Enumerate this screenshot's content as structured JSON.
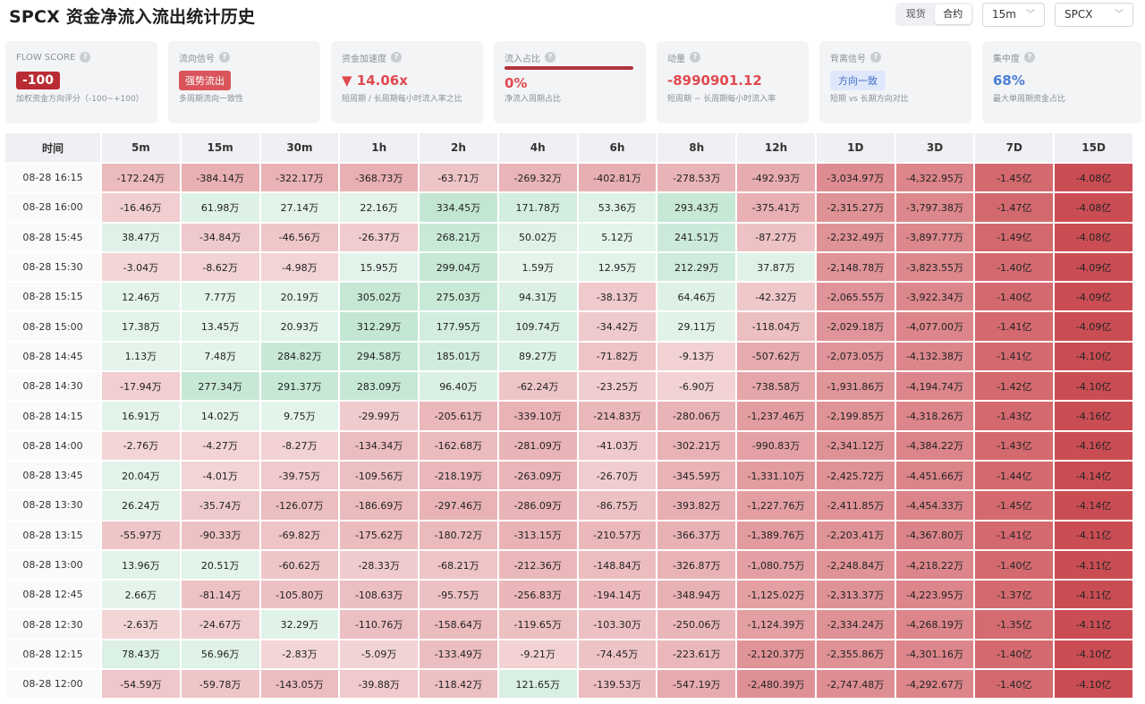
{
  "header": {
    "title": "SPCX 资金净流入流出统计历史",
    "market_tabs": [
      "现货",
      "合约"
    ],
    "active_market_tab": "合约",
    "interval_select": "15m",
    "symbol_select": "SPCX"
  },
  "metrics": {
    "flow_score": {
      "label": "FLOW SCORE",
      "value": "-100",
      "sub": "加权资金方向评分（-100~+100）"
    },
    "flow_signal": {
      "label": "流向信号",
      "value": "强势流出",
      "sub": "多周期流向一致性"
    },
    "acceleration": {
      "label": "资金加速度",
      "value": "▼ 14.06x",
      "sub": "短周期 / 长周期每小时流入率之比"
    },
    "inflow_ratio": {
      "label": "流入占比",
      "value": "0%",
      "sub": "净流入周期占比"
    },
    "momentum": {
      "label": "动量",
      "value": "-8990901.12",
      "sub": "短周期 − 长周期每小时流入率"
    },
    "divergence": {
      "label": "背离信号",
      "value": "方向一致",
      "sub": "短期 vs 长期方向对比"
    },
    "concentration": {
      "label": "集中度",
      "value": "68%",
      "sub": "最大单周期资金占比"
    }
  },
  "colors": {
    "inflow": "#2f9e5a",
    "outflow": "#c0343c",
    "brand_red": "#b92c34",
    "accent_blue": "#4a7fd6"
  },
  "table": {
    "columns": [
      "时间",
      "5m",
      "15m",
      "30m",
      "1h",
      "2h",
      "4h",
      "6h",
      "8h",
      "12h",
      "1D",
      "3D",
      "7D",
      "15D"
    ],
    "rows": [
      {
        "time": "08-28 16:15",
        "cells": [
          "-172.24万",
          "-384.14万",
          "-322.17万",
          "-368.73万",
          "-63.71万",
          "-269.32万",
          "-402.81万",
          "-278.53万",
          "-492.93万",
          "-3,034.97万",
          "-4,322.95万",
          "-1.45亿",
          "-4.08亿"
        ]
      },
      {
        "time": "08-28 16:00",
        "cells": [
          "-16.46万",
          "61.98万",
          "27.14万",
          "22.16万",
          "334.45万",
          "171.78万",
          "53.36万",
          "293.43万",
          "-375.41万",
          "-2,315.27万",
          "-3,797.38万",
          "-1.47亿",
          "-4.08亿"
        ]
      },
      {
        "time": "08-28 15:45",
        "cells": [
          "38.47万",
          "-34.84万",
          "-46.56万",
          "-26.37万",
          "268.21万",
          "50.02万",
          "5.12万",
          "241.51万",
          "-87.27万",
          "-2,232.49万",
          "-3,897.77万",
          "-1.49亿",
          "-4.08亿"
        ]
      },
      {
        "time": "08-28 15:30",
        "cells": [
          "-3.04万",
          "-8.62万",
          "-4.98万",
          "15.95万",
          "299.04万",
          "1.59万",
          "12.95万",
          "212.29万",
          "37.87万",
          "-2,148.78万",
          "-3,823.55万",
          "-1.40亿",
          "-4.09亿"
        ]
      },
      {
        "time": "08-28 15:15",
        "cells": [
          "12.46万",
          "7.77万",
          "20.19万",
          "305.02万",
          "275.03万",
          "94.31万",
          "-38.13万",
          "64.46万",
          "-42.32万",
          "-2,065.55万",
          "-3,922.34万",
          "-1.40亿",
          "-4.09亿"
        ]
      },
      {
        "time": "08-28 15:00",
        "cells": [
          "17.38万",
          "13.45万",
          "20.93万",
          "312.29万",
          "177.95万",
          "109.74万",
          "-34.42万",
          "29.11万",
          "-118.04万",
          "-2,029.18万",
          "-4,077.00万",
          "-1.41亿",
          "-4.09亿"
        ]
      },
      {
        "time": "08-28 14:45",
        "cells": [
          "1.13万",
          "7.48万",
          "284.82万",
          "294.58万",
          "185.01万",
          "89.27万",
          "-71.82万",
          "-9.13万",
          "-507.62万",
          "-2,073.05万",
          "-4,132.38万",
          "-1.41亿",
          "-4.10亿"
        ]
      },
      {
        "time": "08-28 14:30",
        "cells": [
          "-17.94万",
          "277.34万",
          "291.37万",
          "283.09万",
          "96.40万",
          "-62.24万",
          "-23.25万",
          "-6.90万",
          "-738.58万",
          "-1,931.86万",
          "-4,194.74万",
          "-1.42亿",
          "-4.10亿"
        ]
      },
      {
        "time": "08-28 14:15",
        "cells": [
          "16.91万",
          "14.02万",
          "9.75万",
          "-29.99万",
          "-205.61万",
          "-339.10万",
          "-214.83万",
          "-280.06万",
          "-1,237.46万",
          "-2,199.85万",
          "-4,318.26万",
          "-1.43亿",
          "-4.16亿"
        ]
      },
      {
        "time": "08-28 14:00",
        "cells": [
          "-2.76万",
          "-4.27万",
          "-8.27万",
          "-134.34万",
          "-162.68万",
          "-281.09万",
          "-41.03万",
          "-302.21万",
          "-990.83万",
          "-2,341.12万",
          "-4,384.22万",
          "-1.43亿",
          "-4.16亿"
        ]
      },
      {
        "time": "08-28 13:45",
        "cells": [
          "20.04万",
          "-4.01万",
          "-39.75万",
          "-109.56万",
          "-218.19万",
          "-263.09万",
          "-26.70万",
          "-345.59万",
          "-1,331.10万",
          "-2,425.72万",
          "-4,451.66万",
          "-1.44亿",
          "-4.14亿"
        ]
      },
      {
        "time": "08-28 13:30",
        "cells": [
          "26.24万",
          "-35.74万",
          "-126.07万",
          "-186.69万",
          "-297.46万",
          "-286.09万",
          "-86.75万",
          "-393.82万",
          "-1,227.76万",
          "-2,411.85万",
          "-4,454.33万",
          "-1.45亿",
          "-4.14亿"
        ]
      },
      {
        "time": "08-28 13:15",
        "cells": [
          "-55.97万",
          "-90.33万",
          "-69.82万",
          "-175.62万",
          "-180.72万",
          "-313.15万",
          "-210.57万",
          "-366.37万",
          "-1,389.76万",
          "-2,203.41万",
          "-4,367.80万",
          "-1.41亿",
          "-4.11亿"
        ]
      },
      {
        "time": "08-28 13:00",
        "cells": [
          "13.96万",
          "20.51万",
          "-60.62万",
          "-28.33万",
          "-68.21万",
          "-212.36万",
          "-148.84万",
          "-326.87万",
          "-1,080.75万",
          "-2,248.84万",
          "-4,218.22万",
          "-1.40亿",
          "-4.11亿"
        ]
      },
      {
        "time": "08-28 12:45",
        "cells": [
          "2.66万",
          "-81.14万",
          "-105.80万",
          "-108.63万",
          "-95.75万",
          "-256.83万",
          "-194.14万",
          "-348.94万",
          "-1,125.02万",
          "-2,313.37万",
          "-4,223.95万",
          "-1.37亿",
          "-4.11亿"
        ]
      },
      {
        "time": "08-28 12:30",
        "cells": [
          "-2.63万",
          "-24.67万",
          "32.29万",
          "-110.76万",
          "-158.64万",
          "-119.65万",
          "-103.30万",
          "-250.06万",
          "-1,124.39万",
          "-2,334.24万",
          "-4,268.19万",
          "-1.35亿",
          "-4.11亿"
        ]
      },
      {
        "time": "08-28 12:15",
        "cells": [
          "78.43万",
          "56.96万",
          "-2.83万",
          "-5.09万",
          "-133.49万",
          "-9.21万",
          "-74.45万",
          "-223.61万",
          "-2,120.37万",
          "-2,355.86万",
          "-4,301.16万",
          "-1.40亿",
          "-4.10亿"
        ]
      },
      {
        "time": "08-28 12:00",
        "cells": [
          "-54.59万",
          "-59.78万",
          "-143.05万",
          "-39.88万",
          "-118.42万",
          "121.65万",
          "-139.53万",
          "-547.19万",
          "-2,480.39万",
          "-2,747.48万",
          "-4,292.67万",
          "-1.40亿",
          "-4.10亿"
        ]
      }
    ]
  }
}
